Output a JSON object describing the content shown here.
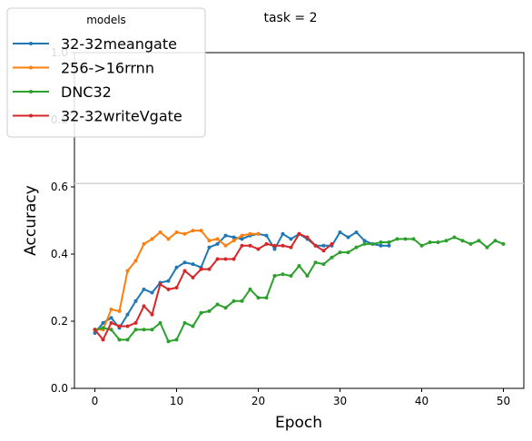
{
  "chart_data": {
    "type": "line",
    "title": "task = 2",
    "xlabel": "Epoch",
    "ylabel": "Accuracy",
    "xlim": [
      -2.5,
      52.5
    ],
    "ylim": [
      0.0,
      1.0
    ],
    "xticks": [
      0,
      10,
      20,
      30,
      40,
      50
    ],
    "yticks": [
      0.0,
      0.2,
      0.4,
      0.6,
      0.8,
      1.0
    ],
    "xtick_labels": [
      "0",
      "10",
      "20",
      "30",
      "40",
      "50"
    ],
    "ytick_labels": [
      "0.0",
      "0.2",
      "0.4",
      "0.6",
      "0.8",
      "1.0"
    ],
    "hline": 0.61,
    "grid": false,
    "legend": {
      "title": "models",
      "placement": "upper-left"
    },
    "series": [
      {
        "name": "32-32meangate",
        "color": "#1f77b4",
        "x": [
          0,
          1,
          2,
          3,
          4,
          5,
          6,
          7,
          8,
          9,
          10,
          11,
          12,
          13,
          14,
          15,
          16,
          17,
          18,
          19,
          20,
          21,
          22,
          23,
          24,
          25,
          26,
          27,
          28,
          29,
          30,
          31,
          32,
          33,
          34,
          35,
          36
        ],
        "values": [
          0.165,
          0.195,
          0.21,
          0.18,
          0.22,
          0.26,
          0.295,
          0.285,
          0.315,
          0.32,
          0.36,
          0.375,
          0.37,
          0.36,
          0.42,
          0.43,
          0.455,
          0.45,
          0.445,
          0.455,
          0.46,
          0.455,
          0.415,
          0.46,
          0.445,
          0.46,
          0.445,
          0.425,
          0.425,
          0.425,
          0.465,
          0.45,
          0.465,
          0.44,
          0.43,
          0.425,
          0.425
        ]
      },
      {
        "name": "256->16rrnn",
        "color": "#ff7f0e",
        "x": [
          0,
          1,
          2,
          3,
          4,
          5,
          6,
          7,
          8,
          9,
          10,
          11,
          12,
          13,
          14,
          15,
          16,
          17,
          18,
          19,
          20
        ],
        "values": [
          0.175,
          0.175,
          0.235,
          0.23,
          0.35,
          0.38,
          0.43,
          0.445,
          0.465,
          0.445,
          0.465,
          0.46,
          0.47,
          0.47,
          0.44,
          0.445,
          0.425,
          0.44,
          0.455,
          0.46,
          0.46
        ]
      },
      {
        "name": "DNC32",
        "color": "#2ca02c",
        "x": [
          0,
          1,
          2,
          3,
          4,
          5,
          6,
          7,
          8,
          9,
          10,
          11,
          12,
          13,
          14,
          15,
          16,
          17,
          18,
          19,
          20,
          21,
          22,
          23,
          24,
          25,
          26,
          27,
          28,
          29,
          30,
          31,
          32,
          33,
          34,
          35,
          36,
          37,
          38,
          39,
          40,
          41,
          42,
          43,
          44,
          45,
          46,
          47,
          48,
          49,
          50
        ],
        "values": [
          0.175,
          0.18,
          0.175,
          0.145,
          0.145,
          0.175,
          0.175,
          0.175,
          0.195,
          0.14,
          0.145,
          0.195,
          0.185,
          0.225,
          0.23,
          0.25,
          0.24,
          0.26,
          0.26,
          0.295,
          0.27,
          0.27,
          0.335,
          0.34,
          0.335,
          0.365,
          0.335,
          0.375,
          0.37,
          0.39,
          0.405,
          0.405,
          0.42,
          0.43,
          0.43,
          0.435,
          0.435,
          0.445,
          0.445,
          0.445,
          0.425,
          0.435,
          0.435,
          0.44,
          0.45,
          0.44,
          0.43,
          0.44,
          0.42,
          0.44,
          0.43
        ]
      },
      {
        "name": "32-32writeVgate",
        "color": "#d62728",
        "x": [
          0,
          1,
          2,
          3,
          4,
          5,
          6,
          7,
          8,
          9,
          10,
          11,
          12,
          13,
          14,
          15,
          16,
          17,
          18,
          19,
          20,
          21,
          22,
          23,
          24,
          25,
          26,
          27,
          28,
          29
        ],
        "values": [
          0.175,
          0.145,
          0.195,
          0.185,
          0.185,
          0.195,
          0.245,
          0.22,
          0.31,
          0.295,
          0.3,
          0.35,
          0.33,
          0.355,
          0.355,
          0.385,
          0.385,
          0.385,
          0.425,
          0.425,
          0.415,
          0.43,
          0.425,
          0.425,
          0.42,
          0.46,
          0.45,
          0.425,
          0.41,
          0.43
        ]
      }
    ]
  }
}
